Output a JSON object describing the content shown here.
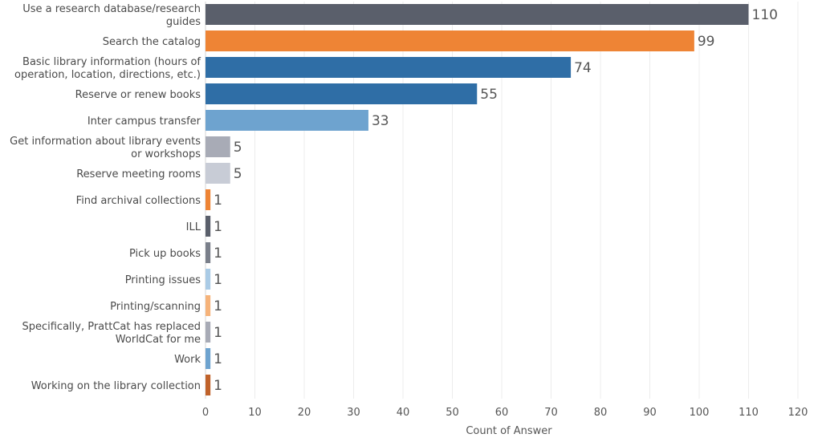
{
  "chart_data": {
    "type": "bar",
    "orientation": "horizontal",
    "categories": [
      "Use a research database/research guides",
      "Search the catalog",
      "Basic library information (hours of operation, location, directions, etc.)",
      "Reserve or renew books",
      "Inter campus transfer",
      "Get information about library events or workshops",
      "Reserve meeting rooms",
      "Find archival collections",
      "ILL",
      "Pick up books",
      "Printing issues",
      "Printing/scanning",
      "Specifically, PrattCat has replaced WorldCat for me",
      "Work",
      "Working on the library collection"
    ],
    "category_label_lines": [
      [
        "Use a research database/research",
        "guides"
      ],
      [
        "Search the catalog"
      ],
      [
        "Basic library information (hours of",
        "operation, location, directions, etc.)"
      ],
      [
        "Reserve or renew books"
      ],
      [
        "Inter campus transfer"
      ],
      [
        "Get information about library events",
        "or workshops"
      ],
      [
        "Reserve meeting rooms"
      ],
      [
        "Find archival collections"
      ],
      [
        "ILL"
      ],
      [
        "Pick up books"
      ],
      [
        "Printing issues"
      ],
      [
        "Printing/scanning"
      ],
      [
        "Specifically, PrattCat has replaced",
        "WorldCat for me"
      ],
      [
        "Work"
      ],
      [
        "Working on the library collection"
      ]
    ],
    "values": [
      110,
      99,
      74,
      55,
      33,
      5,
      5,
      1,
      1,
      1,
      1,
      1,
      1,
      1,
      1
    ],
    "colors": [
      "#5a5f6b",
      "#ee8435",
      "#2f6ea6",
      "#2f6ea6",
      "#6ea3cf",
      "#a8abb6",
      "#c8ccd6",
      "#ee8435",
      "#5a5f6b",
      "#7a7f8a",
      "#aacbe6",
      "#f6b37a",
      "#a8abb6",
      "#6ea3cf",
      "#c0622a"
    ],
    "xlabel": "Count of Answer",
    "ylabel": "",
    "xlim": [
      0,
      120
    ],
    "xticks": [
      0,
      10,
      20,
      30,
      40,
      50,
      60,
      70,
      80,
      90,
      100,
      110,
      120
    ],
    "grid": true,
    "legend": "none"
  }
}
